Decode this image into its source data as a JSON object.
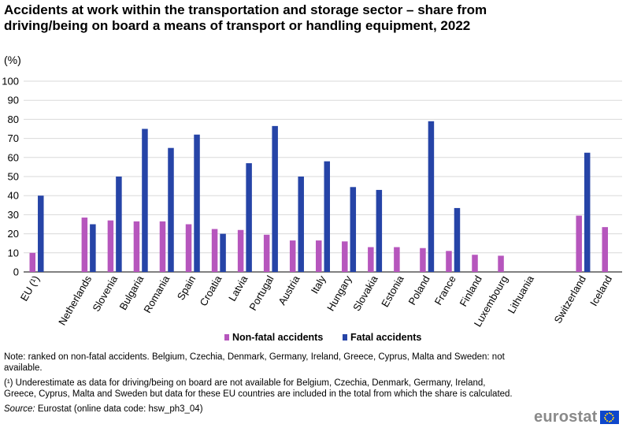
{
  "chart_data": {
    "type": "bar",
    "title": "Accidents at work within the transportation and storage sector – share from driving/being on board a means of transport or handling equipment, 2022",
    "ylabel": "(%)",
    "xlabel": "",
    "ylim": [
      0,
      100
    ],
    "yticks": [
      0,
      10,
      20,
      30,
      40,
      50,
      60,
      70,
      80,
      90,
      100
    ],
    "grid": true,
    "legend_position": "bottom",
    "categories": [
      "EU (¹)",
      "",
      "Netherlands",
      "Slovenia",
      "Bulgaria",
      "Romania",
      "Spain",
      "Croatia",
      "Latvia",
      "Portugal",
      "Austria",
      "Italy",
      "Hungary",
      "Slovakia",
      "Estonia",
      "Poland",
      "France",
      "Finland",
      "Luxembourg",
      "Lithuania",
      "",
      "Switzerland",
      "Iceland"
    ],
    "series": [
      {
        "name": "Non-fatal accidents",
        "color": "#b656bd",
        "values": [
          10,
          null,
          28.5,
          27,
          26.5,
          26.5,
          25,
          22.5,
          22,
          19.5,
          16.5,
          16.5,
          16,
          13,
          13,
          12.5,
          11,
          9,
          8.5,
          null,
          null,
          29.5,
          23.5
        ]
      },
      {
        "name": "Fatal accidents",
        "color": "#2644a7",
        "values": [
          40,
          null,
          25,
          50,
          75,
          65,
          72,
          20,
          57,
          76.5,
          50,
          58,
          44.5,
          43,
          null,
          79,
          33.5,
          null,
          null,
          null,
          null,
          62.5,
          null
        ]
      }
    ]
  },
  "notes": {
    "note": "Note: ranked on non-fatal accidents. Belgium, Czechia, Denmark, Germany, Ireland, Greece, Cyprus, Malta and Sweden: not available.",
    "footnote": "(¹) Underestimate as data for driving/being on board are not available for Belgium, Czechia, Denmark, Germany, Ireland, Greece, Cyprus, Malta and Sweden but data for these EU countries are included in the total from which the share is calculated.",
    "source_label": "Source:",
    "source_text": " Eurostat (online data code: hsw_ph3_04)"
  },
  "branding": {
    "logo_text": "eurostat",
    "flag_color": "#0e47cb",
    "star_color": "#ffd617"
  }
}
